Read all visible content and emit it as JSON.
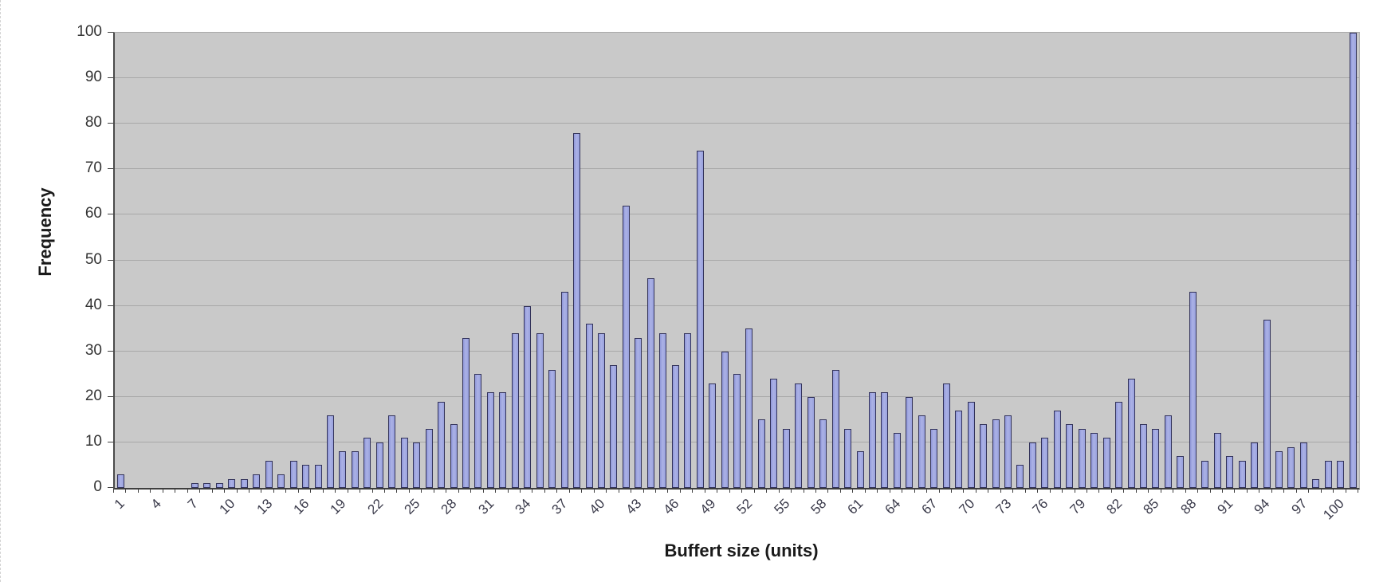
{
  "chart_data": {
    "type": "bar",
    "title": "",
    "xlabel": "Buffert size (units)",
    "ylabel": "Frequency",
    "ylim": [
      0,
      100
    ],
    "yticks": [
      0,
      10,
      20,
      30,
      40,
      50,
      60,
      70,
      80,
      90,
      100
    ],
    "xtick_labels": [
      "1",
      "4",
      "7",
      "10",
      "13",
      "16",
      "19",
      "22",
      "25",
      "28",
      "31",
      "34",
      "37",
      "40",
      "43",
      "46",
      "49",
      "52",
      "55",
      "58",
      "61",
      "64",
      "67",
      "70",
      "73",
      "76",
      "79",
      "82",
      "85",
      "88",
      "91",
      "94",
      "97",
      "100"
    ],
    "xtick_label_every": 3,
    "n_categories": 101,
    "values": [
      3,
      0,
      0,
      0,
      0,
      0,
      1,
      1,
      1,
      2,
      2,
      3,
      6,
      3,
      6,
      5,
      5,
      16,
      8,
      8,
      11,
      10,
      16,
      11,
      10,
      13,
      19,
      14,
      33,
      25,
      21,
      21,
      34,
      40,
      34,
      26,
      43,
      78,
      36,
      34,
      27,
      62,
      33,
      46,
      34,
      27,
      34,
      74,
      23,
      30,
      25,
      35,
      15,
      24,
      13,
      23,
      20,
      15,
      26,
      13,
      8,
      21,
      21,
      12,
      20,
      16,
      13,
      23,
      17,
      19,
      14,
      15,
      16,
      5,
      10,
      11,
      17,
      14,
      13,
      12,
      11,
      19,
      24,
      14,
      13,
      16,
      7,
      43,
      6,
      12,
      7,
      6,
      10,
      37,
      8,
      9,
      10,
      2,
      6,
      6,
      100
    ],
    "legend": null,
    "grid": "horizontal",
    "colors": {
      "plot_bg": "#c9c9c9",
      "bar_fill": "#a3aade",
      "bar_border": "#32325a",
      "gridline": "#a8a8a8",
      "axis_line": "#404040",
      "tick_text": "#333333",
      "title_text": "#1a1a1a",
      "page_bg": "#ffffff"
    }
  }
}
